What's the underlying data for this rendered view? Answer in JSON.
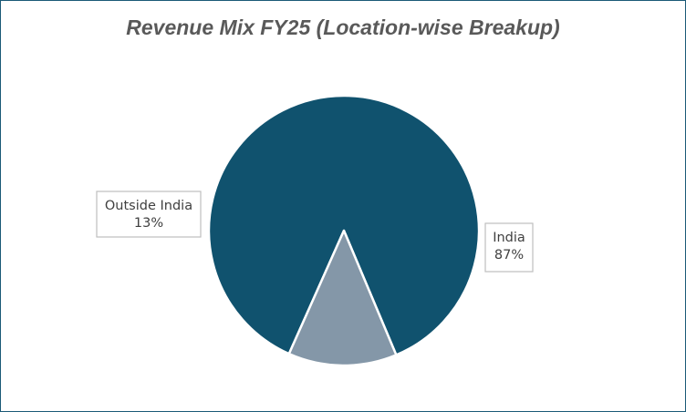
{
  "chart_data": {
    "type": "pie",
    "title": "Revenue Mix FY25 (Location-wise Breakup)",
    "slices": [
      {
        "label": "India",
        "value": 87,
        "value_label": "87%",
        "color": "#10526e"
      },
      {
        "label": "Outside India",
        "value": 13,
        "value_label": "13%",
        "color": "#8497a8"
      }
    ],
    "legend": "none",
    "data_labels": "outside-boxed"
  }
}
